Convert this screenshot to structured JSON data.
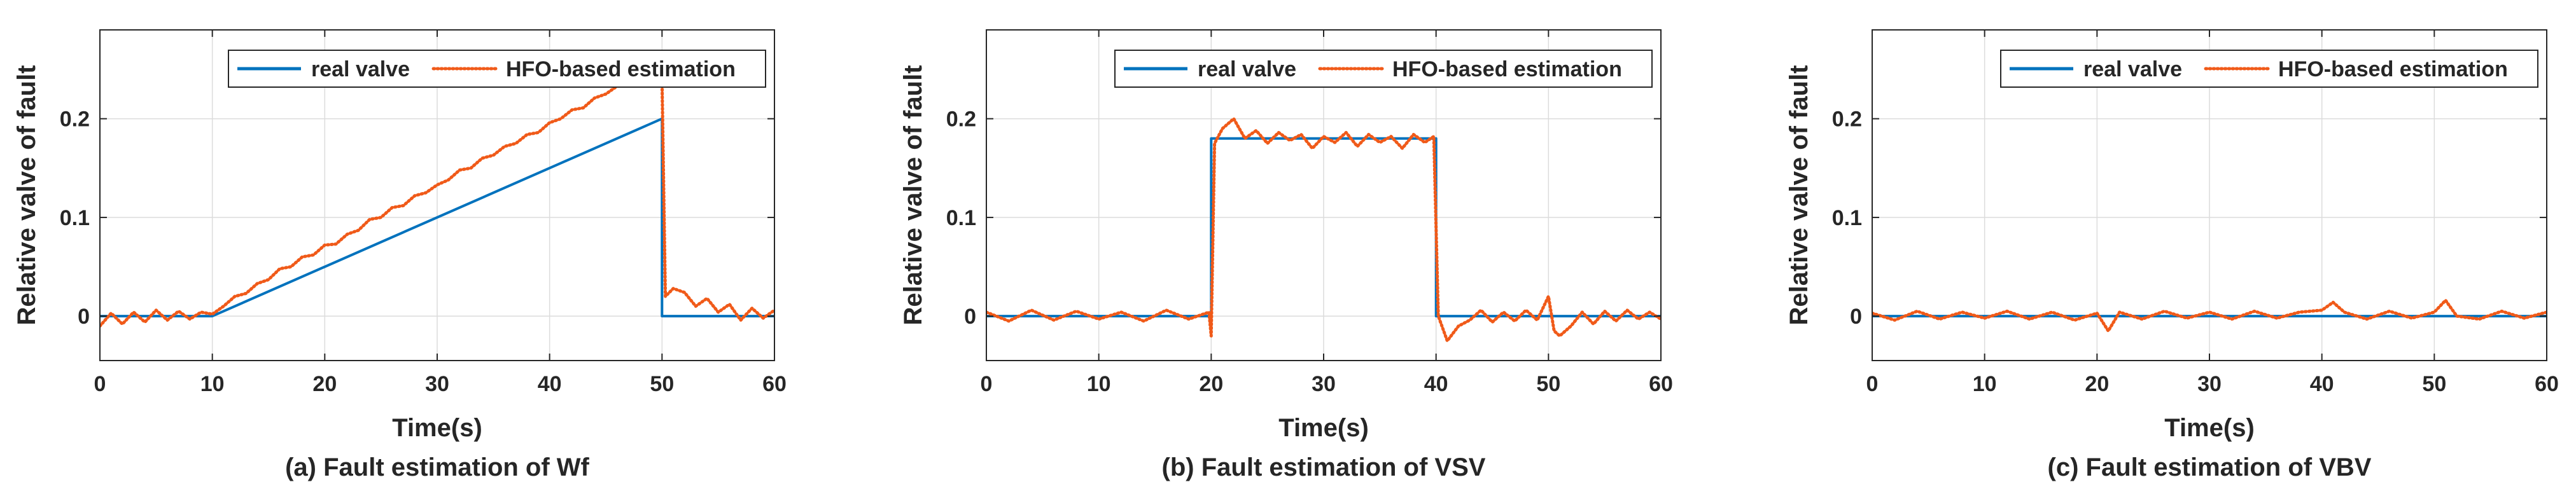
{
  "figure": {
    "colors": {
      "real": "#0072BD",
      "estimation": "#F05A19",
      "grid": "#DCDCDC",
      "axis": "#262626"
    }
  },
  "chart_data": [
    {
      "type": "line",
      "caption": "(a) Fault estimation of Wf",
      "xlabel": "Time(s)",
      "ylabel": "Relative valve of fault",
      "xlim": [
        0,
        60
      ],
      "ylim": [
        -0.045,
        0.29
      ],
      "xticks": [
        0,
        10,
        20,
        30,
        40,
        50,
        60
      ],
      "yticks": [
        0,
        0.1,
        0.2
      ],
      "xtick_labels": [
        "0",
        "10",
        "20",
        "30",
        "40",
        "50",
        "60"
      ],
      "ytick_labels": [
        "0",
        "0.1",
        "0.2"
      ],
      "grid": true,
      "legend": {
        "position": "top-right",
        "entries": [
          "real valve",
          "HFO-based estimation"
        ]
      },
      "series": [
        {
          "name": "real valve",
          "style": "solid",
          "points": [
            [
              0,
              0
            ],
            [
              10,
              0
            ],
            [
              50,
              0.2
            ],
            [
              50,
              0
            ],
            [
              60,
              0
            ]
          ]
        },
        {
          "name": "HFO-based estimation",
          "style": "dotted",
          "points": [
            [
              0,
              -0.01
            ],
            [
              1,
              0.003
            ],
            [
              2,
              -0.008
            ],
            [
              3,
              0.004
            ],
            [
              4,
              -0.006
            ],
            [
              5,
              0.006
            ],
            [
              6,
              -0.004
            ],
            [
              7,
              0.005
            ],
            [
              8,
              -0.003
            ],
            [
              9,
              0.004
            ],
            [
              10,
              0.002
            ],
            [
              11,
              0.01
            ],
            [
              12,
              0.02
            ],
            [
              13,
              0.023
            ],
            [
              14,
              0.033
            ],
            [
              15,
              0.037
            ],
            [
              16,
              0.048
            ],
            [
              17,
              0.05
            ],
            [
              18,
              0.06
            ],
            [
              19,
              0.062
            ],
            [
              20,
              0.072
            ],
            [
              21,
              0.073
            ],
            [
              22,
              0.083
            ],
            [
              23,
              0.087
            ],
            [
              24,
              0.098
            ],
            [
              25,
              0.1
            ],
            [
              26,
              0.11
            ],
            [
              27,
              0.112
            ],
            [
              28,
              0.122
            ],
            [
              29,
              0.125
            ],
            [
              30,
              0.133
            ],
            [
              31,
              0.138
            ],
            [
              32,
              0.148
            ],
            [
              33,
              0.15
            ],
            [
              34,
              0.16
            ],
            [
              35,
              0.163
            ],
            [
              36,
              0.172
            ],
            [
              37,
              0.175
            ],
            [
              38,
              0.184
            ],
            [
              39,
              0.186
            ],
            [
              40,
              0.196
            ],
            [
              41,
              0.2
            ],
            [
              42,
              0.209
            ],
            [
              43,
              0.211
            ],
            [
              44,
              0.221
            ],
            [
              45,
              0.225
            ],
            [
              46,
              0.233
            ],
            [
              47,
              0.236
            ],
            [
              48,
              0.246
            ],
            [
              49,
              0.252
            ],
            [
              49.8,
              0.262
            ],
            [
              50,
              0.24
            ],
            [
              50.3,
              0.02
            ],
            [
              51,
              0.028
            ],
            [
              52,
              0.024
            ],
            [
              53,
              0.01
            ],
            [
              54,
              0.018
            ],
            [
              55,
              0.004
            ],
            [
              56,
              0.012
            ],
            [
              57,
              -0.004
            ],
            [
              58,
              0.008
            ],
            [
              59,
              -0.002
            ],
            [
              60,
              0.006
            ]
          ]
        }
      ]
    },
    {
      "type": "line",
      "caption": "(b) Fault estimation of VSV",
      "xlabel": "Time(s)",
      "ylabel": "Relative valve of fault",
      "xlim": [
        0,
        60
      ],
      "ylim": [
        -0.045,
        0.29
      ],
      "xticks": [
        0,
        10,
        20,
        30,
        40,
        50,
        60
      ],
      "yticks": [
        0,
        0.1,
        0.2
      ],
      "xtick_labels": [
        "0",
        "10",
        "20",
        "30",
        "40",
        "50",
        "60"
      ],
      "ytick_labels": [
        "0",
        "0.1",
        "0.2"
      ],
      "grid": true,
      "legend": {
        "position": "top-right",
        "entries": [
          "real valve",
          "HFO-based estimation"
        ]
      },
      "series": [
        {
          "name": "real valve",
          "style": "solid",
          "points": [
            [
              0,
              0
            ],
            [
              20,
              0
            ],
            [
              20,
              0.18
            ],
            [
              40,
              0.18
            ],
            [
              40,
              0
            ],
            [
              60,
              0
            ]
          ]
        },
        {
          "name": "HFO-based estimation",
          "style": "dotted",
          "points": [
            [
              0,
              0.004
            ],
            [
              2,
              -0.005
            ],
            [
              4,
              0.006
            ],
            [
              6,
              -0.004
            ],
            [
              8,
              0.005
            ],
            [
              10,
              -0.003
            ],
            [
              12,
              0.004
            ],
            [
              14,
              -0.005
            ],
            [
              16,
              0.006
            ],
            [
              18,
              -0.003
            ],
            [
              19.8,
              0.004
            ],
            [
              20,
              -0.02
            ],
            [
              20.3,
              0.175
            ],
            [
              21,
              0.19
            ],
            [
              22,
              0.2
            ],
            [
              23,
              0.18
            ],
            [
              24,
              0.188
            ],
            [
              25,
              0.175
            ],
            [
              26,
              0.186
            ],
            [
              27,
              0.178
            ],
            [
              28,
              0.184
            ],
            [
              29,
              0.17
            ],
            [
              30,
              0.182
            ],
            [
              31,
              0.176
            ],
            [
              32,
              0.186
            ],
            [
              33,
              0.172
            ],
            [
              34,
              0.184
            ],
            [
              35,
              0.176
            ],
            [
              36,
              0.182
            ],
            [
              37,
              0.17
            ],
            [
              38,
              0.184
            ],
            [
              39,
              0.176
            ],
            [
              39.8,
              0.182
            ],
            [
              40.2,
              0.0
            ],
            [
              41,
              -0.025
            ],
            [
              42,
              -0.01
            ],
            [
              43,
              -0.004
            ],
            [
              44,
              0.006
            ],
            [
              45,
              -0.006
            ],
            [
              46,
              0.004
            ],
            [
              47,
              -0.005
            ],
            [
              48,
              0.006
            ],
            [
              49,
              -0.004
            ],
            [
              50,
              0.02
            ],
            [
              50.5,
              -0.015
            ],
            [
              51,
              -0.02
            ],
            [
              52,
              -0.01
            ],
            [
              53,
              0.004
            ],
            [
              54,
              -0.008
            ],
            [
              55,
              0.005
            ],
            [
              56,
              -0.005
            ],
            [
              57,
              0.006
            ],
            [
              58,
              -0.003
            ],
            [
              59,
              0.004
            ],
            [
              60,
              -0.003
            ]
          ]
        }
      ]
    },
    {
      "type": "line",
      "caption": "(c) Fault estimation of VBV",
      "xlabel": "Time(s)",
      "ylabel": "Relative valve of fault",
      "xlim": [
        0,
        60
      ],
      "ylim": [
        -0.045,
        0.29
      ],
      "xticks": [
        0,
        10,
        20,
        30,
        40,
        50,
        60
      ],
      "yticks": [
        0,
        0.1,
        0.2
      ],
      "xtick_labels": [
        "0",
        "10",
        "20",
        "30",
        "40",
        "50",
        "60"
      ],
      "ytick_labels": [
        "0",
        "0.1",
        "0.2"
      ],
      "grid": true,
      "legend": {
        "position": "top-right",
        "entries": [
          "real valve",
          "HFO-based estimation"
        ]
      },
      "series": [
        {
          "name": "real valve",
          "style": "solid",
          "points": [
            [
              0,
              0
            ],
            [
              60,
              0
            ]
          ]
        },
        {
          "name": "HFO-based estimation",
          "style": "dotted",
          "points": [
            [
              0,
              0.003
            ],
            [
              2,
              -0.004
            ],
            [
              4,
              0.005
            ],
            [
              6,
              -0.003
            ],
            [
              8,
              0.004
            ],
            [
              10,
              -0.002
            ],
            [
              12,
              0.005
            ],
            [
              14,
              -0.003
            ],
            [
              16,
              0.004
            ],
            [
              18,
              -0.004
            ],
            [
              20,
              0.003
            ],
            [
              21,
              -0.015
            ],
            [
              22,
              0.004
            ],
            [
              24,
              -0.003
            ],
            [
              26,
              0.005
            ],
            [
              28,
              -0.002
            ],
            [
              30,
              0.004
            ],
            [
              32,
              -0.003
            ],
            [
              34,
              0.005
            ],
            [
              36,
              -0.002
            ],
            [
              38,
              0.004
            ],
            [
              40,
              0.006
            ],
            [
              41,
              0.014
            ],
            [
              42,
              0.004
            ],
            [
              44,
              -0.003
            ],
            [
              46,
              0.005
            ],
            [
              48,
              -0.002
            ],
            [
              50,
              0.004
            ],
            [
              51,
              0.016
            ],
            [
              52,
              0.0
            ],
            [
              54,
              -0.003
            ],
            [
              56,
              0.005
            ],
            [
              58,
              -0.002
            ],
            [
              60,
              0.004
            ]
          ]
        }
      ]
    }
  ]
}
